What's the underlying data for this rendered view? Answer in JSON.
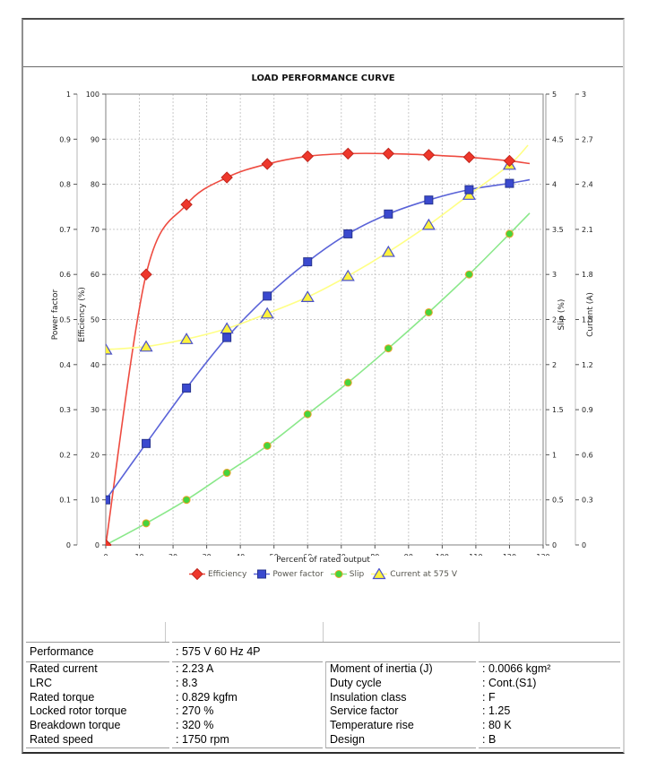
{
  "chart_data": {
    "type": "line",
    "title": "LOAD PERFORMANCE CURVE",
    "xlabel": "Percent of rated output",
    "grid": true,
    "legend_position": "bottom",
    "x": [
      0,
      12,
      24,
      36,
      48,
      60,
      72,
      84,
      96,
      108,
      120
    ],
    "axes": {
      "x": {
        "label": "Percent of rated output",
        "min": 0,
        "max": 130,
        "step": 10
      },
      "power_factor": {
        "label": "Power factor",
        "min": 0,
        "max": 1,
        "step": 0.1
      },
      "efficiency": {
        "label": "Efficiency (%)",
        "min": 0,
        "max": 100,
        "step": 10
      },
      "slip": {
        "label": "Slip (%)",
        "min": 0,
        "max": 5,
        "step": 0.5
      },
      "current": {
        "label": "Current (A)",
        "min": 0,
        "max": 3,
        "step": 0.3
      }
    },
    "series": [
      {
        "name": "Efficiency",
        "axis": "efficiency",
        "marker": "diamond",
        "line_color": "#ee4b40",
        "marker_fill": "#ee372b",
        "marker_stroke": "#c0251c",
        "values": [
          0,
          60,
          75.5,
          81.5,
          84.5,
          86.2,
          86.8,
          86.8,
          86.5,
          86,
          85.2
        ],
        "trail": {
          "x": 126,
          "v": 84.6
        }
      },
      {
        "name": "Power factor",
        "axis": "power_factor",
        "marker": "square",
        "line_color": "#5a63d8",
        "marker_fill": "#3a49cf",
        "marker_stroke": "#27348f",
        "values": [
          0.1,
          0.225,
          0.348,
          0.46,
          0.552,
          0.628,
          0.69,
          0.734,
          0.765,
          0.788,
          0.802
        ],
        "trail": {
          "x": 126,
          "v": 0.81
        }
      },
      {
        "name": "Slip",
        "axis": "slip",
        "marker": "circle",
        "line_color": "#8ae88a",
        "marker_fill": "#46d43c",
        "marker_stroke": "#eda32c",
        "values": [
          0,
          0.24,
          0.5,
          0.8,
          1.1,
          1.45,
          1.8,
          2.18,
          2.58,
          3.0,
          3.45
        ],
        "trail": {
          "x": 126,
          "v": 3.68
        }
      },
      {
        "name": "Current at 575 V",
        "axis": "current",
        "marker": "triangle",
        "line_color": "#ffff85",
        "marker_fill": "#fdf23d",
        "marker_stroke": "#4a51cc",
        "values": [
          1.3,
          1.32,
          1.37,
          1.44,
          1.54,
          1.65,
          1.79,
          1.95,
          2.13,
          2.33,
          2.53
        ],
        "trail": {
          "x": 125.5,
          "v": 2.66
        }
      }
    ]
  },
  "spec_table": {
    "performance_label": "Performance",
    "performance_value": ": 575 V 60 Hz 4P",
    "rows": [
      [
        "Rated current",
        ": 2.23 A",
        "Moment of inertia (J)",
        ": 0.0066 kgm²"
      ],
      [
        "LRC",
        ": 8.3",
        "Duty cycle",
        ": Cont.(S1)"
      ],
      [
        "Rated torque",
        ": 0.829 kgfm",
        "Insulation class",
        ": F"
      ],
      [
        "Locked rotor torque",
        ": 270 %",
        "Service factor",
        ": 1.25"
      ],
      [
        "Breakdown torque",
        ": 320 %",
        "Temperature rise",
        ": 80 K"
      ],
      [
        "Rated speed",
        ": 1750 rpm",
        "Design",
        ": B"
      ]
    ]
  }
}
